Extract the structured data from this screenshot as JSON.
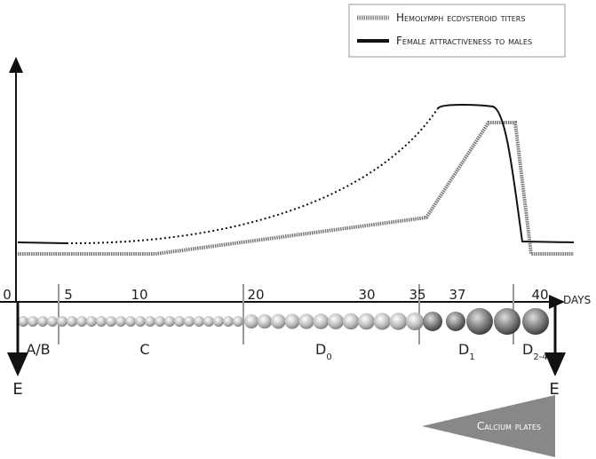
{
  "legend": {
    "items": [
      "Hemolymph ecdysteroid titers",
      "Female attractiveness to males"
    ]
  },
  "axis": {
    "unit": "days",
    "tick_labels": [
      "0",
      "5",
      "10",
      "20",
      "30",
      "35",
      "37",
      "40"
    ]
  },
  "stages": [
    {
      "label": "A/B"
    },
    {
      "label": "C"
    },
    {
      "label": "D",
      "sub": "0"
    },
    {
      "label": "D",
      "sub": "1"
    },
    {
      "label": "D",
      "sub": "2-4"
    }
  ],
  "ends": [
    "E",
    "E"
  ],
  "calcium": "Calcium plates"
}
